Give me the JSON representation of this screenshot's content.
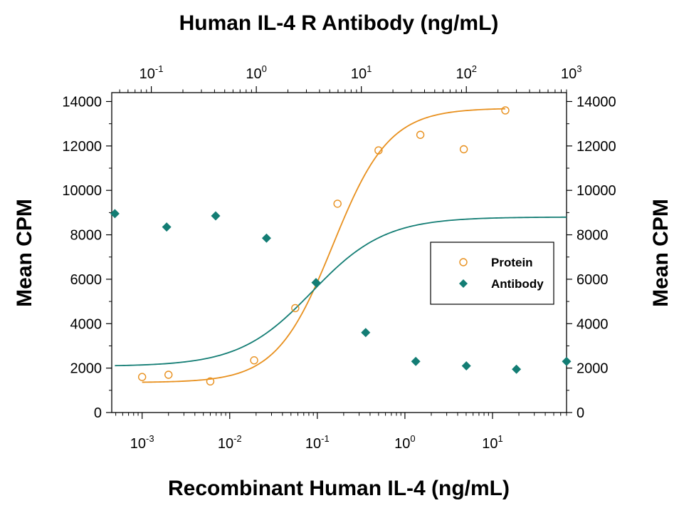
{
  "chart_data": {
    "type": "scatter",
    "title": "Human IL-4 R Antibody (ng/mL)",
    "xlabel": "Recombinant Human IL-4 (ng/mL)",
    "ylabel": "Mean CPM",
    "ylabel_right": "Mean CPM",
    "x_scale": "log",
    "xlim": [
      0.00045,
      70
    ],
    "x2_scale": "log",
    "x2lim": [
      0.042,
      900
    ],
    "ylim": [
      0,
      14400
    ],
    "y_ticks": [
      "0",
      "2000",
      "4000",
      "6000",
      "8000",
      "10000",
      "12000",
      "14000"
    ],
    "x_ticks": [
      {
        "base": "10",
        "exp": "-3",
        "value": 0.001
      },
      {
        "base": "10",
        "exp": "-2",
        "value": 0.01
      },
      {
        "base": "10",
        "exp": "-1",
        "value": 0.1
      },
      {
        "base": "10",
        "exp": "0",
        "value": 1
      },
      {
        "base": "10",
        "exp": "1",
        "value": 10
      }
    ],
    "x2_ticks": [
      {
        "base": "10",
        "exp": "-1",
        "value": 0.1
      },
      {
        "base": "10",
        "exp": "0",
        "value": 1
      },
      {
        "base": "10",
        "exp": "1",
        "value": 10
      },
      {
        "base": "10",
        "exp": "2",
        "value": 100
      },
      {
        "base": "10",
        "exp": "3",
        "value": 1000
      }
    ],
    "legend": {
      "placement": "middle-right",
      "entries": [
        {
          "label": "Protein",
          "marker": "open-circle",
          "color": "#e8901e"
        },
        {
          "label": "Antibody",
          "marker": "diamond",
          "color": "#137d74"
        }
      ]
    },
    "series": [
      {
        "name": "Protein",
        "axis": "bottom",
        "color": "#e8901e",
        "marker": "open-circle",
        "x": [
          0.001,
          0.002,
          0.006,
          0.019,
          0.056,
          0.17,
          0.5,
          1.5,
          4.7,
          14
        ],
        "y": [
          1600,
          1700,
          1400,
          2350,
          4700,
          9400,
          11800,
          12500,
          11850,
          13600
        ],
        "fit": {
          "bottom": 1350,
          "top": 13700,
          "ec50": 0.15,
          "hill": 1.35
        }
      },
      {
        "name": "Antibody",
        "axis": "top",
        "color": "#137d74",
        "marker": "diamond",
        "x": [
          0.045,
          0.14,
          0.41,
          1.25,
          3.7,
          11,
          33,
          100,
          300,
          900
        ],
        "y": [
          8950,
          8350,
          8850,
          7850,
          5850,
          3600,
          2300,
          2100,
          1950,
          2300
        ],
        "fit": {
          "bottom": 2080,
          "top": 8800,
          "ec50": 3.4,
          "hill": 1.25
        }
      }
    ]
  }
}
